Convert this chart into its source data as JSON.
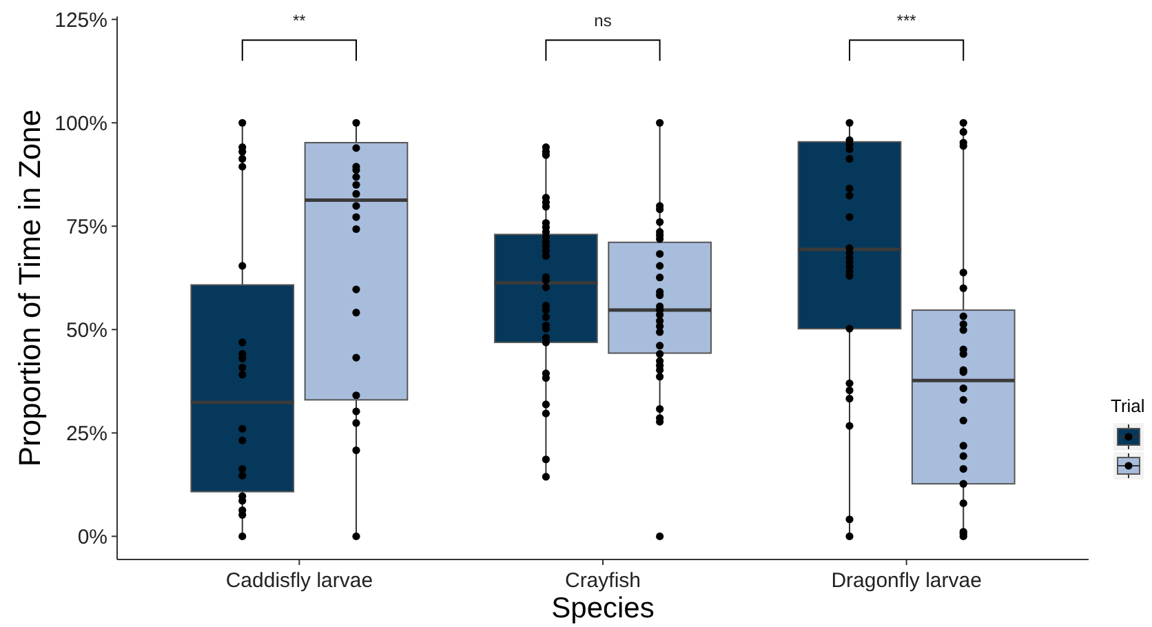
{
  "chart_data": {
    "type": "box",
    "xlabel": "Species",
    "ylabel": "Proportion of Time in Zone",
    "categories": [
      "Caddisfly larvae",
      "Crayfish",
      "Dragonfly larvae"
    ],
    "ylim": [
      -5.6,
      125.7
    ],
    "yticks": [
      {
        "value": 0,
        "label": "0%"
      },
      {
        "value": 25,
        "label": "25%"
      },
      {
        "value": 50,
        "label": "50%"
      },
      {
        "value": 75,
        "label": "75%"
      },
      {
        "value": 100,
        "label": "100%"
      },
      {
        "value": 125,
        "label": "125%"
      }
    ],
    "legend_title": "Trial",
    "marker": "circle",
    "annotations": [
      "**",
      "ns",
      "***"
    ],
    "series": [
      {
        "type": "box",
        "color": "#05385b",
        "boxes": [
          {
            "low": 0,
            "q1": 10.8,
            "median": 32.4,
            "q3": 60.8,
            "high": 100
          },
          {
            "low": 14.4,
            "q1": 46.9,
            "median": 61.3,
            "q3": 73,
            "high": 94.1
          },
          {
            "low": 0,
            "q1": 50.2,
            "median": 69.4,
            "q3": 95.4,
            "high": 100
          }
        ]
      },
      {
        "type": "box",
        "color": "#a8bcdc",
        "boxes": [
          {
            "low": 0,
            "q1": 33,
            "median": 81.3,
            "q3": 95.2,
            "high": 100
          },
          {
            "low": 27.4,
            "q1": 44.3,
            "median": 54.7,
            "q3": 71.1,
            "high": 100
          },
          {
            "low": 0,
            "q1": 12.7,
            "median": 37.7,
            "q3": 54.7,
            "high": 100
          }
        ]
      },
      {
        "type": "scatter",
        "color": "#000000",
        "x": [
          "Caddisfly larvae",
          "Caddisfly larvae",
          "Caddisfly larvae",
          "Caddisfly larvae",
          "Caddisfly larvae",
          "Caddisfly larvae",
          "Caddisfly larvae",
          "Caddisfly larvae",
          "Caddisfly larvae",
          "Caddisfly larvae",
          "Caddisfly larvae",
          "Caddisfly larvae",
          "Caddisfly larvae",
          "Caddisfly larvae",
          "Caddisfly larvae",
          "Caddisfly larvae",
          "Caddisfly larvae",
          "Caddisfly larvae",
          "Caddisfly larvae",
          "Caddisfly larvae",
          "Crayfish",
          "Crayfish",
          "Crayfish",
          "Crayfish",
          "Crayfish",
          "Crayfish",
          "Crayfish",
          "Crayfish",
          "Crayfish",
          "Crayfish",
          "Crayfish",
          "Crayfish",
          "Crayfish",
          "Crayfish",
          "Crayfish",
          "Crayfish",
          "Crayfish",
          "Crayfish",
          "Crayfish",
          "Crayfish",
          "Crayfish",
          "Crayfish",
          "Crayfish",
          "Crayfish",
          "Crayfish",
          "Crayfish",
          "Crayfish",
          "Crayfish",
          "Crayfish",
          "Crayfish",
          "Dragonfly larvae",
          "Dragonfly larvae",
          "Dragonfly larvae",
          "Dragonfly larvae",
          "Dragonfly larvae",
          "Dragonfly larvae",
          "Dragonfly larvae",
          "Dragonfly larvae",
          "Dragonfly larvae",
          "Dragonfly larvae",
          "Dragonfly larvae",
          "Dragonfly larvae",
          "Dragonfly larvae",
          "Dragonfly larvae",
          "Dragonfly larvae",
          "Dragonfly larvae",
          "Dragonfly larvae",
          "Dragonfly larvae",
          "Dragonfly larvae",
          "Dragonfly larvae",
          "Dragonfly larvae",
          "Dragonfly larvae"
        ],
        "values": [
          100,
          94.1,
          93,
          91.3,
          89.4,
          65.4,
          46.9,
          44.1,
          43,
          40.8,
          39.1,
          26,
          23.2,
          16.3,
          14.7,
          9.7,
          8.6,
          6.3,
          5.2,
          0,
          94.1,
          93,
          92.2,
          81.9,
          80.8,
          79.7,
          75.8,
          74.7,
          73.6,
          72.4,
          71.3,
          70.2,
          69.1,
          67.8,
          62.7,
          61.9,
          60.2,
          55.8,
          54.7,
          53,
          51,
          50.2,
          48,
          46.9,
          39.4,
          38.3,
          31.9,
          29.7,
          18.6,
          14.4,
          100,
          95.8,
          94.7,
          93.6,
          91.3,
          84.1,
          82.4,
          77.2,
          69.7,
          68.6,
          67.4,
          66.3,
          65.2,
          64.1,
          63,
          50.2,
          37,
          35.3,
          33.3,
          26.7,
          4.1,
          0
        ]
      },
      {
        "type": "scatter",
        "color": "#000000",
        "x": [
          "Caddisfly larvae",
          "Caddisfly larvae",
          "Caddisfly larvae",
          "Caddisfly larvae",
          "Caddisfly larvae",
          "Caddisfly larvae",
          "Caddisfly larvae",
          "Caddisfly larvae",
          "Caddisfly larvae",
          "Caddisfly larvae",
          "Caddisfly larvae",
          "Caddisfly larvae",
          "Caddisfly larvae",
          "Caddisfly larvae",
          "Caddisfly larvae",
          "Caddisfly larvae",
          "Caddisfly larvae",
          "Caddisfly larvae",
          "Crayfish",
          "Crayfish",
          "Crayfish",
          "Crayfish",
          "Crayfish",
          "Crayfish",
          "Crayfish",
          "Crayfish",
          "Crayfish",
          "Crayfish",
          "Crayfish",
          "Crayfish",
          "Crayfish",
          "Crayfish",
          "Crayfish",
          "Crayfish",
          "Crayfish",
          "Crayfish",
          "Crayfish",
          "Crayfish",
          "Crayfish",
          "Crayfish",
          "Crayfish",
          "Crayfish",
          "Crayfish",
          "Crayfish",
          "Crayfish",
          "Crayfish",
          "Dragonfly larvae",
          "Dragonfly larvae",
          "Dragonfly larvae",
          "Dragonfly larvae",
          "Dragonfly larvae",
          "Dragonfly larvae",
          "Dragonfly larvae",
          "Dragonfly larvae",
          "Dragonfly larvae",
          "Dragonfly larvae",
          "Dragonfly larvae",
          "Dragonfly larvae",
          "Dragonfly larvae",
          "Dragonfly larvae",
          "Dragonfly larvae",
          "Dragonfly larvae",
          "Dragonfly larvae",
          "Dragonfly larvae",
          "Dragonfly larvae",
          "Dragonfly larvae",
          "Dragonfly larvae",
          "Dragonfly larvae",
          "Dragonfly larvae",
          "Dragonfly larvae"
        ],
        "values": [
          100,
          93.9,
          89.4,
          88.6,
          86.9,
          85,
          82.8,
          79.9,
          77.2,
          74.3,
          59.7,
          54.1,
          43.2,
          34.1,
          30.2,
          27.4,
          20.8,
          0,
          100,
          79.9,
          79.1,
          76,
          73.6,
          72.8,
          71.9,
          68.3,
          65.4,
          62.6,
          59.1,
          58.3,
          55.6,
          54.7,
          53.6,
          52.1,
          50.8,
          49.4,
          46.1,
          44.1,
          42.4,
          41.3,
          40.2,
          38.6,
          30.8,
          28.6,
          27.7,
          0,
          100,
          97.8,
          95.2,
          94.4,
          63.8,
          60,
          53.2,
          51.3,
          49.9,
          45.2,
          44.1,
          40.2,
          39.7,
          35.8,
          33,
          28,
          21.9,
          19.4,
          16.3,
          12.7,
          8,
          1.1,
          0.6,
          0
        ]
      }
    ]
  }
}
